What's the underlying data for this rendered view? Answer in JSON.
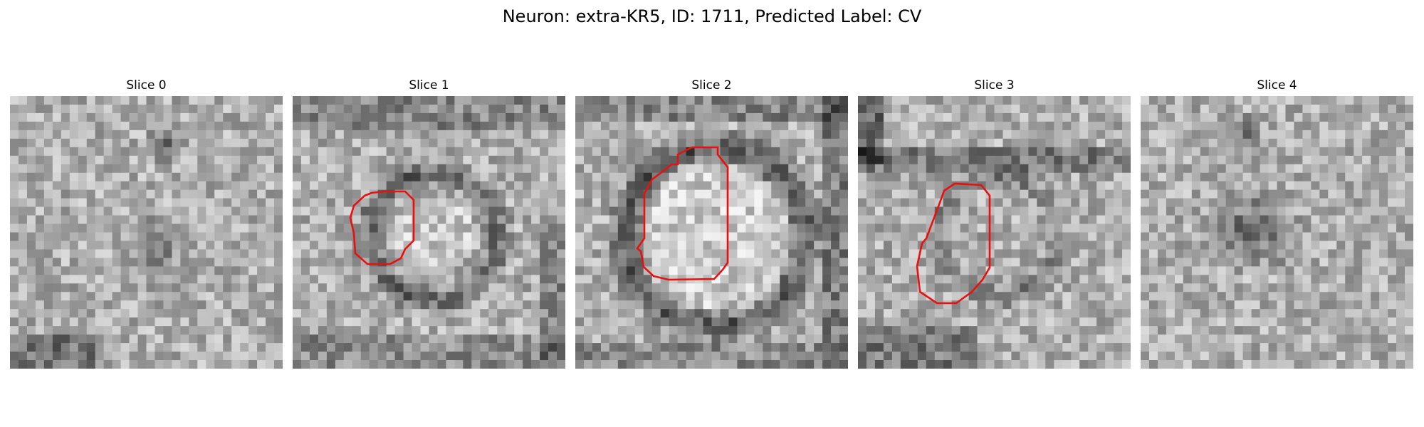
{
  "figure": {
    "title": "Neuron: extra-KR5, ID: 1711, Predicted Label: CV"
  },
  "panels": [
    {
      "title": "Slice 0",
      "seed": 11,
      "feature": "dark-blob",
      "contour": false
    },
    {
      "title": "Slice 1",
      "seed": 23,
      "feature": "ring-small",
      "contour": true
    },
    {
      "title": "Slice 2",
      "seed": 37,
      "feature": "ring-large",
      "contour": true
    },
    {
      "title": "Slice 3",
      "seed": 41,
      "feature": "ring-faint",
      "contour": true
    },
    {
      "title": "Slice 4",
      "seed": 53,
      "feature": "dark-blob-offset",
      "contour": false
    }
  ],
  "colors": {
    "contour": "#e8110f",
    "background": "#ffffff"
  }
}
